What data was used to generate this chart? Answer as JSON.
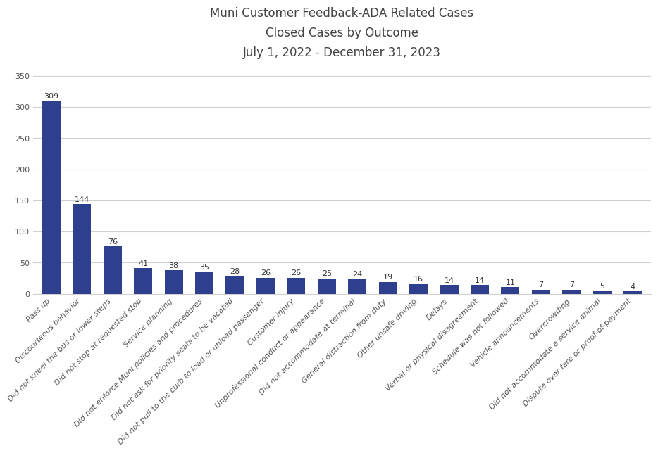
{
  "title": "Muni Customer Feedback-ADA Related Cases\nClosed Cases by Outcome\nJuly 1, 2022 - December 31, 2023",
  "categories": [
    "Pass up",
    "Discourteous behavior",
    "Did not kneel the bus or lower steps",
    "Did not stop at requested stop",
    "Service planning",
    "Did not enforce Muni policies and procedures",
    "Did not ask for priority seats to be vacated",
    "Did not pull to the curb to load or unload passenger",
    "Customer injury",
    "Unprofessional conduct or appearance",
    "Did not accommodate at terminal",
    "General distraction from duty",
    "Other unsafe driving",
    "Delays",
    "Verbal or physical disagreement",
    "Schedule was not followed",
    "Vehicle announcements",
    "Overcrowding",
    "Did not accommodate a service animal",
    "Dispute over fare or proof-of-payment"
  ],
  "values": [
    309,
    144,
    76,
    41,
    38,
    35,
    28,
    26,
    26,
    25,
    24,
    19,
    16,
    14,
    14,
    11,
    7,
    7,
    5,
    4
  ],
  "bar_color": "#2e3f8e",
  "background_color": "#ffffff",
  "ylim": [
    0,
    360
  ],
  "yticks": [
    0,
    50,
    100,
    150,
    200,
    250,
    300,
    350
  ],
  "title_fontsize": 12,
  "tick_label_fontsize": 8,
  "value_label_fontsize": 8,
  "grid_color": "#d0d0d0",
  "ytick_color": "#555555",
  "xtick_color": "#555555"
}
